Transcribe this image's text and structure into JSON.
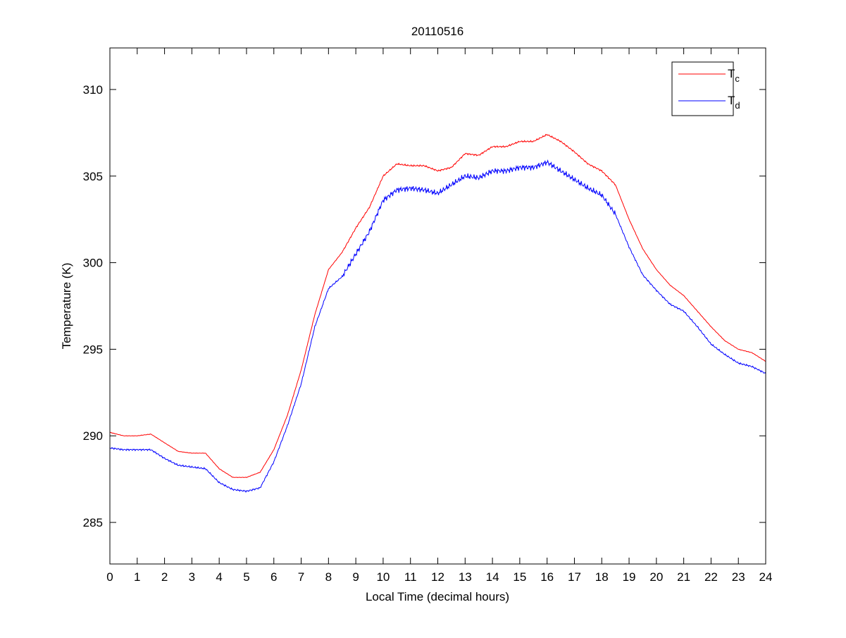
{
  "chart_data": {
    "type": "line",
    "title": "20110516",
    "xlabel": "Local Time (decimal hours)",
    "ylabel": "Temperature (K)",
    "xlim": [
      0,
      24
    ],
    "ylim": [
      282.6,
      312.4
    ],
    "xticks": [
      0,
      1,
      2,
      3,
      4,
      5,
      6,
      7,
      8,
      9,
      10,
      11,
      12,
      13,
      14,
      15,
      16,
      17,
      18,
      19,
      20,
      21,
      22,
      23,
      24
    ],
    "yticks": [
      285,
      290,
      295,
      300,
      305,
      310
    ],
    "grid": false,
    "legend_position": "top-right",
    "x": [
      0,
      0.5,
      1,
      1.5,
      2,
      2.5,
      3,
      3.5,
      4,
      4.5,
      5,
      5.5,
      6,
      6.5,
      7,
      7.5,
      8,
      8.5,
      9,
      9.5,
      10,
      10.5,
      11,
      11.5,
      12,
      12.5,
      13,
      13.5,
      14,
      14.5,
      15,
      15.5,
      16,
      16.5,
      17,
      17.5,
      18,
      18.5,
      19,
      19.5,
      20,
      20.5,
      21,
      21.5,
      22,
      22.5,
      23,
      23.5,
      24
    ],
    "series": [
      {
        "name": "T",
        "subscript": "c",
        "color": "#ff0000",
        "values": [
          290.2,
          290.0,
          290.0,
          290.1,
          289.6,
          289.1,
          289.0,
          289.0,
          288.1,
          287.6,
          287.6,
          287.9,
          289.2,
          291.2,
          293.8,
          297.0,
          299.6,
          300.6,
          302.0,
          303.2,
          305.0,
          305.7,
          305.6,
          305.6,
          305.3,
          305.5,
          306.3,
          306.2,
          306.7,
          306.7,
          307.0,
          307.0,
          307.4,
          307.0,
          306.4,
          305.7,
          305.3,
          304.5,
          302.5,
          300.8,
          299.6,
          298.7,
          298.1,
          297.2,
          296.3,
          295.5,
          295.0,
          294.8,
          294.3
        ]
      },
      {
        "name": "T",
        "subscript": "d",
        "color": "#0000ff",
        "values": [
          289.3,
          289.2,
          289.2,
          289.2,
          288.7,
          288.3,
          288.2,
          288.1,
          287.3,
          286.9,
          286.8,
          287.0,
          288.5,
          290.6,
          293.0,
          296.3,
          298.5,
          299.2,
          300.5,
          301.8,
          303.6,
          304.2,
          304.3,
          304.2,
          304.0,
          304.5,
          305.0,
          304.9,
          305.3,
          305.3,
          305.5,
          305.5,
          305.8,
          305.3,
          304.8,
          304.3,
          303.9,
          302.8,
          300.9,
          299.3,
          298.4,
          297.6,
          297.2,
          296.3,
          295.3,
          294.7,
          294.2,
          294.0,
          293.6
        ]
      }
    ]
  }
}
